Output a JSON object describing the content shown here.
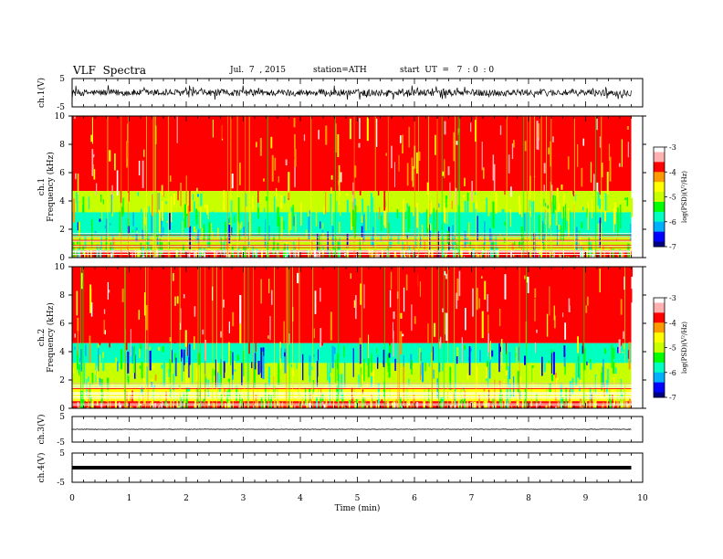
{
  "header": {
    "title": "VLF  Spectra",
    "date": "Jul.  7  , 2015",
    "station": "station=ATH",
    "start_ut": "start  UT  =   7  : 0  : 0"
  },
  "chart_data": {
    "type": "heatmap",
    "x": {
      "label": "Time  (min)",
      "range": [
        0,
        10
      ],
      "ticks": [
        0,
        1,
        2,
        3,
        4,
        5,
        6,
        7,
        8,
        9,
        10
      ],
      "data_end": 9.8
    },
    "colorbar": {
      "label": "log(PSD)(V²/Hz)",
      "range": [
        -7,
        -3
      ],
      "ticks": [
        -3,
        -4,
        -5,
        -6,
        -7
      ],
      "colors": [
        "#000080",
        "#0000ff",
        "#00b0ff",
        "#00ffc0",
        "#00ff00",
        "#c8ff00",
        "#ffff00",
        "#ff9900",
        "#ff0000",
        "#ffb0b0",
        "#ffffff"
      ]
    },
    "panels": [
      {
        "kind": "waveform",
        "label": "ch.1(V)",
        "yrange": [
          -5,
          5
        ],
        "ticks": [
          5,
          -5
        ],
        "amplitude": 1.2
      },
      {
        "kind": "spectrogram",
        "channel_label": "ch.1",
        "ylabel": "Frequency  (kHz)",
        "yrange": [
          0,
          10
        ],
        "ticks": [
          0,
          2,
          4,
          6,
          8,
          10
        ],
        "bands": [
          {
            "f": [
              4.7,
              10
            ],
            "logpsd": -3.9
          },
          {
            "f": [
              3.2,
              4.7
            ],
            "logpsd": -5.2
          },
          {
            "f": [
              1.5,
              3.2
            ],
            "logpsd": -5.7
          },
          {
            "f": [
              0.5,
              1.5
            ],
            "logpsd": -5.0
          },
          {
            "f": [
              0,
              0.5
            ],
            "logpsd": -3.8
          }
        ]
      },
      {
        "kind": "spectrogram",
        "channel_label": "ch.2",
        "ylabel": "Frequency  (kHz)",
        "yrange": [
          0,
          10
        ],
        "ticks": [
          0,
          2,
          4,
          6,
          8,
          10
        ],
        "bands": [
          {
            "f": [
              4.6,
              10
            ],
            "logpsd": -3.9
          },
          {
            "f": [
              3.2,
              4.6
            ],
            "logpsd": -5.9
          },
          {
            "f": [
              1.5,
              3.2
            ],
            "logpsd": -5.2
          },
          {
            "f": [
              0.5,
              1.5
            ],
            "logpsd": -4.8
          },
          {
            "f": [
              0,
              0.5
            ],
            "logpsd": -3.8
          }
        ]
      },
      {
        "kind": "waveform",
        "label": "ch.3(V)",
        "yrange": [
          -5,
          5
        ],
        "ticks": [
          5,
          -5
        ],
        "amplitude": 0.1
      },
      {
        "kind": "waveform",
        "label": "ch.4(V)",
        "yrange": [
          -5,
          5
        ],
        "ticks": [
          5,
          -5
        ],
        "amplitude": 0.0
      }
    ]
  }
}
